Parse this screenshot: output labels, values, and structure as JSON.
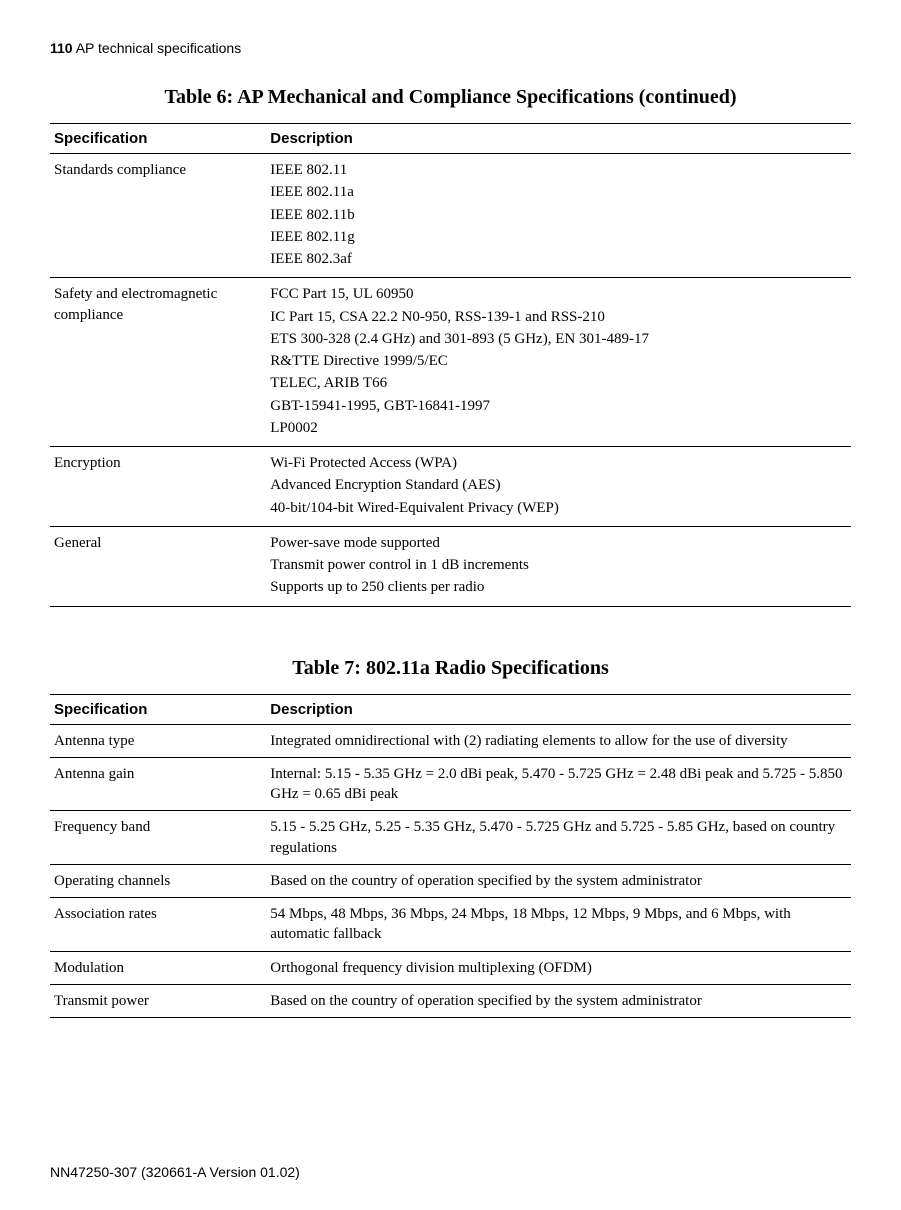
{
  "header": {
    "page_number": "110",
    "section_title": "AP technical specifications"
  },
  "table6": {
    "title": "Table 6: AP Mechanical and Compliance Specifications (continued)",
    "columns": [
      "Specification",
      "Description"
    ],
    "rows": [
      {
        "spec": "Standards compliance",
        "desc_lines": [
          "IEEE 802.11",
          "IEEE 802.11a",
          "IEEE 802.11b",
          "IEEE 802.11g",
          "IEEE 802.3af"
        ]
      },
      {
        "spec": "Safety and electromagnetic compliance",
        "desc_lines": [
          "FCC Part 15, UL 60950",
          "IC Part 15, CSA 22.2 N0-950, RSS-139-1 and RSS-210",
          "ETS 300-328 (2.4 GHz) and 301-893 (5 GHz), EN 301-489-17",
          "R&TTE Directive 1999/5/EC",
          "TELEC, ARIB T66",
          "GBT-15941-1995, GBT-16841-1997",
          "LP0002"
        ]
      },
      {
        "spec": "Encryption",
        "desc_lines": [
          "Wi-Fi Protected Access (WPA)",
          "Advanced Encryption Standard (AES)",
          "40-bit/104-bit Wired-Equivalent Privacy (WEP)"
        ]
      },
      {
        "spec": "General",
        "desc_lines": [
          "Power-save mode supported",
          "Transmit power control in 1 dB increments",
          "Supports up to 250 clients per radio"
        ]
      }
    ]
  },
  "table7": {
    "title": "Table 7: 802.11a Radio Specifications",
    "columns": [
      "Specification",
      "Description"
    ],
    "rows": [
      {
        "spec": "Antenna type",
        "desc": "Integrated omnidirectional with (2) radiating elements to allow for the use of diversity"
      },
      {
        "spec": "Antenna gain",
        "desc": "Internal: 5.15 - 5.35 GHz = 2.0 dBi peak, 5.470 - 5.725 GHz = 2.48 dBi peak and 5.725 - 5.850 GHz = 0.65 dBi peak"
      },
      {
        "spec": "Frequency band",
        "desc": "5.15 - 5.25 GHz, 5.25 - 5.35 GHz, 5.470 - 5.725 GHz and 5.725 - 5.85 GHz, based on country regulations"
      },
      {
        "spec": "Operating channels",
        "desc": "Based on the country of operation specified by the system administrator"
      },
      {
        "spec": "Association rates",
        "desc": "54 Mbps, 48 Mbps, 36 Mbps, 24 Mbps, 18 Mbps, 12 Mbps, 9 Mbps, and 6 Mbps, with automatic fallback"
      },
      {
        "spec": "Modulation",
        "desc": "Orthogonal frequency division multiplexing (OFDM)"
      },
      {
        "spec": "Transmit power",
        "desc": "Based on the country of operation specified by the system administrator"
      }
    ]
  },
  "footer": {
    "doc_id": "NN47250-307 (320661-A Version 01.02)"
  }
}
